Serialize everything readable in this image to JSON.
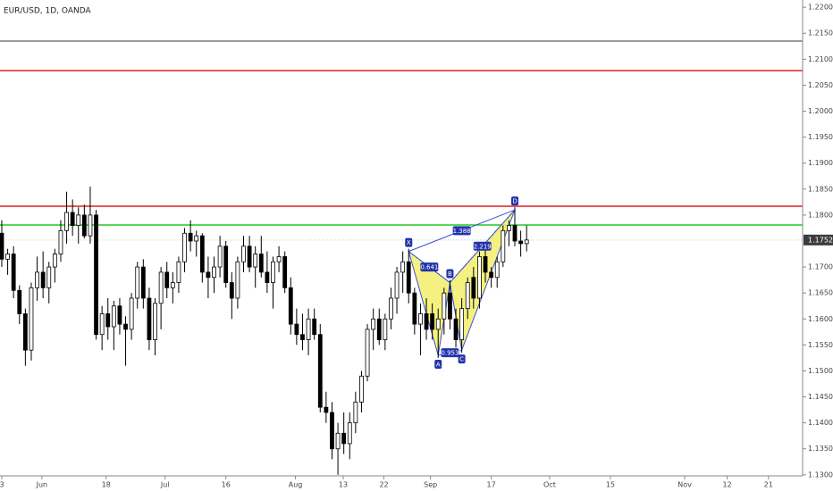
{
  "chart_data": {
    "type": "candlestick",
    "title": "EUR/USD, 1D, OANDA",
    "xlim": [
      -0.3,
      135.8
    ],
    "ylim": [
      1.1298,
      1.2214
    ],
    "xticks": [
      {
        "value": 0,
        "label": "3"
      },
      {
        "value": 6.8,
        "label": "Jun"
      },
      {
        "value": 17.7,
        "label": "18"
      },
      {
        "value": 27.7,
        "label": "Jul"
      },
      {
        "value": 38,
        "label": "16"
      },
      {
        "value": 49.8,
        "label": "Aug"
      },
      {
        "value": 57.9,
        "label": "13"
      },
      {
        "value": 64.8,
        "label": "22"
      },
      {
        "value": 72.7,
        "label": "Sep"
      },
      {
        "value": 83,
        "label": "17"
      },
      {
        "value": 92.9,
        "label": "Oct"
      },
      {
        "value": 103.2,
        "label": "15"
      },
      {
        "value": 115.8,
        "label": "Nov"
      },
      {
        "value": 123,
        "label": "12"
      },
      {
        "value": 130,
        "label": "21"
      }
    ],
    "yticks": [
      {
        "value": 1.22,
        "label": "1.22000"
      },
      {
        "value": 1.215,
        "label": "1.21500"
      },
      {
        "value": 1.21,
        "label": "1.21000"
      },
      {
        "value": 1.205,
        "label": "1.20500"
      },
      {
        "value": 1.2,
        "label": "1.20000"
      },
      {
        "value": 1.195,
        "label": "1.19500"
      },
      {
        "value": 1.19,
        "label": "1.19000"
      },
      {
        "value": 1.185,
        "label": "1.18500"
      },
      {
        "value": 1.18,
        "label": "1.18000"
      },
      {
        "value": 1.17,
        "label": "1.17000"
      },
      {
        "value": 1.165,
        "label": "1.16500"
      },
      {
        "value": 1.16,
        "label": "1.16000"
      },
      {
        "value": 1.155,
        "label": "1.15500"
      },
      {
        "value": 1.15,
        "label": "1.15000"
      },
      {
        "value": 1.145,
        "label": "1.14500"
      },
      {
        "value": 1.14,
        "label": "1.14000"
      },
      {
        "value": 1.135,
        "label": "1.13500"
      },
      {
        "value": 1.13,
        "label": "1.13000"
      }
    ],
    "grid": false,
    "up_color": "#ffffff",
    "down_color": "#000000",
    "candles": [
      [
        1.1765,
        1.179,
        1.17,
        1.1715
      ],
      [
        1.1715,
        1.1735,
        1.1685,
        1.1725
      ],
      [
        1.1725,
        1.174,
        1.164,
        1.1655
      ],
      [
        1.1655,
        1.1665,
        1.159,
        1.161
      ],
      [
        1.161,
        1.162,
        1.151,
        1.154
      ],
      [
        1.154,
        1.167,
        1.152,
        1.166
      ],
      [
        1.166,
        1.172,
        1.1635,
        1.169
      ],
      [
        1.169,
        1.173,
        1.164,
        1.166
      ],
      [
        1.166,
        1.171,
        1.163,
        1.17
      ],
      [
        1.17,
        1.1735,
        1.167,
        1.1725
      ],
      [
        1.1725,
        1.179,
        1.171,
        1.177
      ],
      [
        1.177,
        1.1845,
        1.1745,
        1.1805
      ],
      [
        1.1805,
        1.183,
        1.176,
        1.178
      ],
      [
        1.178,
        1.1815,
        1.1745,
        1.18
      ],
      [
        1.18,
        1.182,
        1.1755,
        1.176
      ],
      [
        1.176,
        1.1855,
        1.1745,
        1.18
      ],
      [
        1.18,
        1.181,
        1.156,
        1.157
      ],
      [
        1.157,
        1.1625,
        1.154,
        1.161
      ],
      [
        1.161,
        1.164,
        1.156,
        1.1585
      ],
      [
        1.1585,
        1.1635,
        1.154,
        1.1625
      ],
      [
        1.1625,
        1.164,
        1.157,
        1.159
      ],
      [
        1.159,
        1.1605,
        1.151,
        1.158
      ],
      [
        1.158,
        1.165,
        1.156,
        1.164
      ],
      [
        1.164,
        1.171,
        1.162,
        1.17
      ],
      [
        1.17,
        1.1715,
        1.162,
        1.164
      ],
      [
        1.164,
        1.166,
        1.154,
        1.156
      ],
      [
        1.156,
        1.164,
        1.153,
        1.163
      ],
      [
        1.163,
        1.17,
        1.158,
        1.169
      ],
      [
        1.169,
        1.171,
        1.164,
        1.166
      ],
      [
        1.166,
        1.169,
        1.163,
        1.167
      ],
      [
        1.167,
        1.172,
        1.165,
        1.171
      ],
      [
        1.171,
        1.1775,
        1.169,
        1.1765
      ],
      [
        1.1765,
        1.179,
        1.173,
        1.175
      ],
      [
        1.175,
        1.177,
        1.172,
        1.176
      ],
      [
        1.176,
        1.1765,
        1.167,
        1.169
      ],
      [
        1.169,
        1.172,
        1.164,
        1.168
      ],
      [
        1.168,
        1.172,
        1.165,
        1.17
      ],
      [
        1.17,
        1.176,
        1.168,
        1.174
      ],
      [
        1.174,
        1.175,
        1.166,
        1.167
      ],
      [
        1.167,
        1.169,
        1.16,
        1.164
      ],
      [
        1.164,
        1.172,
        1.162,
        1.171
      ],
      [
        1.171,
        1.176,
        1.169,
        1.174
      ],
      [
        1.174,
        1.176,
        1.169,
        1.17
      ],
      [
        1.17,
        1.174,
        1.166,
        1.1725
      ],
      [
        1.1725,
        1.176,
        1.168,
        1.169
      ],
      [
        1.169,
        1.173,
        1.165,
        1.167
      ],
      [
        1.167,
        1.172,
        1.162,
        1.171
      ],
      [
        1.171,
        1.174,
        1.169,
        1.172
      ],
      [
        1.172,
        1.173,
        1.165,
        1.166
      ],
      [
        1.166,
        1.168,
        1.157,
        1.159
      ],
      [
        1.159,
        1.162,
        1.155,
        1.157
      ],
      [
        1.157,
        1.161,
        1.154,
        1.156
      ],
      [
        1.156,
        1.162,
        1.153,
        1.16
      ],
      [
        1.16,
        1.162,
        1.156,
        1.157
      ],
      [
        1.157,
        1.159,
        1.142,
        1.143
      ],
      [
        1.143,
        1.146,
        1.14,
        1.142
      ],
      [
        1.142,
        1.144,
        1.133,
        1.135
      ],
      [
        1.135,
        1.14,
        1.13,
        1.138
      ],
      [
        1.138,
        1.142,
        1.134,
        1.136
      ],
      [
        1.136,
        1.142,
        1.133,
        1.14
      ],
      [
        1.14,
        1.146,
        1.138,
        1.144
      ],
      [
        1.144,
        1.15,
        1.142,
        1.149
      ],
      [
        1.149,
        1.159,
        1.148,
        1.158
      ],
      [
        1.158,
        1.162,
        1.154,
        1.16
      ],
      [
        1.16,
        1.162,
        1.155,
        1.156
      ],
      [
        1.156,
        1.161,
        1.154,
        1.16
      ],
      [
        1.16,
        1.166,
        1.158,
        1.164
      ],
      [
        1.164,
        1.17,
        1.161,
        1.169
      ],
      [
        1.169,
        1.173,
        1.165,
        1.171
      ],
      [
        1.171,
        1.1735,
        1.163,
        1.165
      ],
      [
        1.165,
        1.166,
        1.157,
        1.159
      ],
      [
        1.159,
        1.163,
        1.153,
        1.161
      ],
      [
        1.161,
        1.164,
        1.156,
        1.158
      ],
      [
        1.161,
        1.163,
        1.156,
        1.158
      ],
      [
        1.158,
        1.162,
        1.1525,
        1.16
      ],
      [
        1.16,
        1.166,
        1.157,
        1.165
      ],
      [
        1.165,
        1.1675,
        1.158,
        1.16
      ],
      [
        1.16,
        1.162,
        1.1545,
        1.156
      ],
      [
        1.156,
        1.164,
        1.1535,
        1.162
      ],
      [
        1.162,
        1.168,
        1.16,
        1.167
      ],
      [
        1.168,
        1.17,
        1.162,
        1.164
      ],
      [
        1.164,
        1.173,
        1.162,
        1.172
      ],
      [
        1.172,
        1.174,
        1.167,
        1.169
      ],
      [
        1.169,
        1.17,
        1.166,
        1.168
      ],
      [
        1.168,
        1.172,
        1.166,
        1.171
      ],
      [
        1.171,
        1.178,
        1.17,
        1.177
      ],
      [
        1.177,
        1.179,
        1.174,
        1.178
      ],
      [
        1.178,
        1.1815,
        1.174,
        1.175
      ],
      [
        1.175,
        1.177,
        1.172,
        1.1745
      ],
      [
        1.1745,
        1.178,
        1.173,
        1.1752
      ]
    ],
    "hlines": [
      {
        "value": 1.2135,
        "color": "#7a7a7a"
      },
      {
        "value": 1.2078,
        "color": "#e02020"
      },
      {
        "value": 1.1817,
        "color": "#e02020"
      },
      {
        "value": 1.1781,
        "color": "#22c922"
      }
    ],
    "last_price": {
      "value": 1.1752,
      "label": "1.17520"
    },
    "pattern": {
      "color": "#3a4fd8",
      "fill": "#f3ef6a",
      "points": [
        {
          "label": "X",
          "x": 69,
          "y": 1.173
        },
        {
          "label": "A",
          "x": 74,
          "y": 1.153
        },
        {
          "label": "B",
          "x": 76,
          "y": 1.167
        },
        {
          "label": "C",
          "x": 78,
          "y": 1.154
        },
        {
          "label": "D",
          "x": 87,
          "y": 1.181
        }
      ],
      "ratios": [
        "0.641",
        "1.388",
        "0.953",
        "2.219"
      ]
    }
  }
}
